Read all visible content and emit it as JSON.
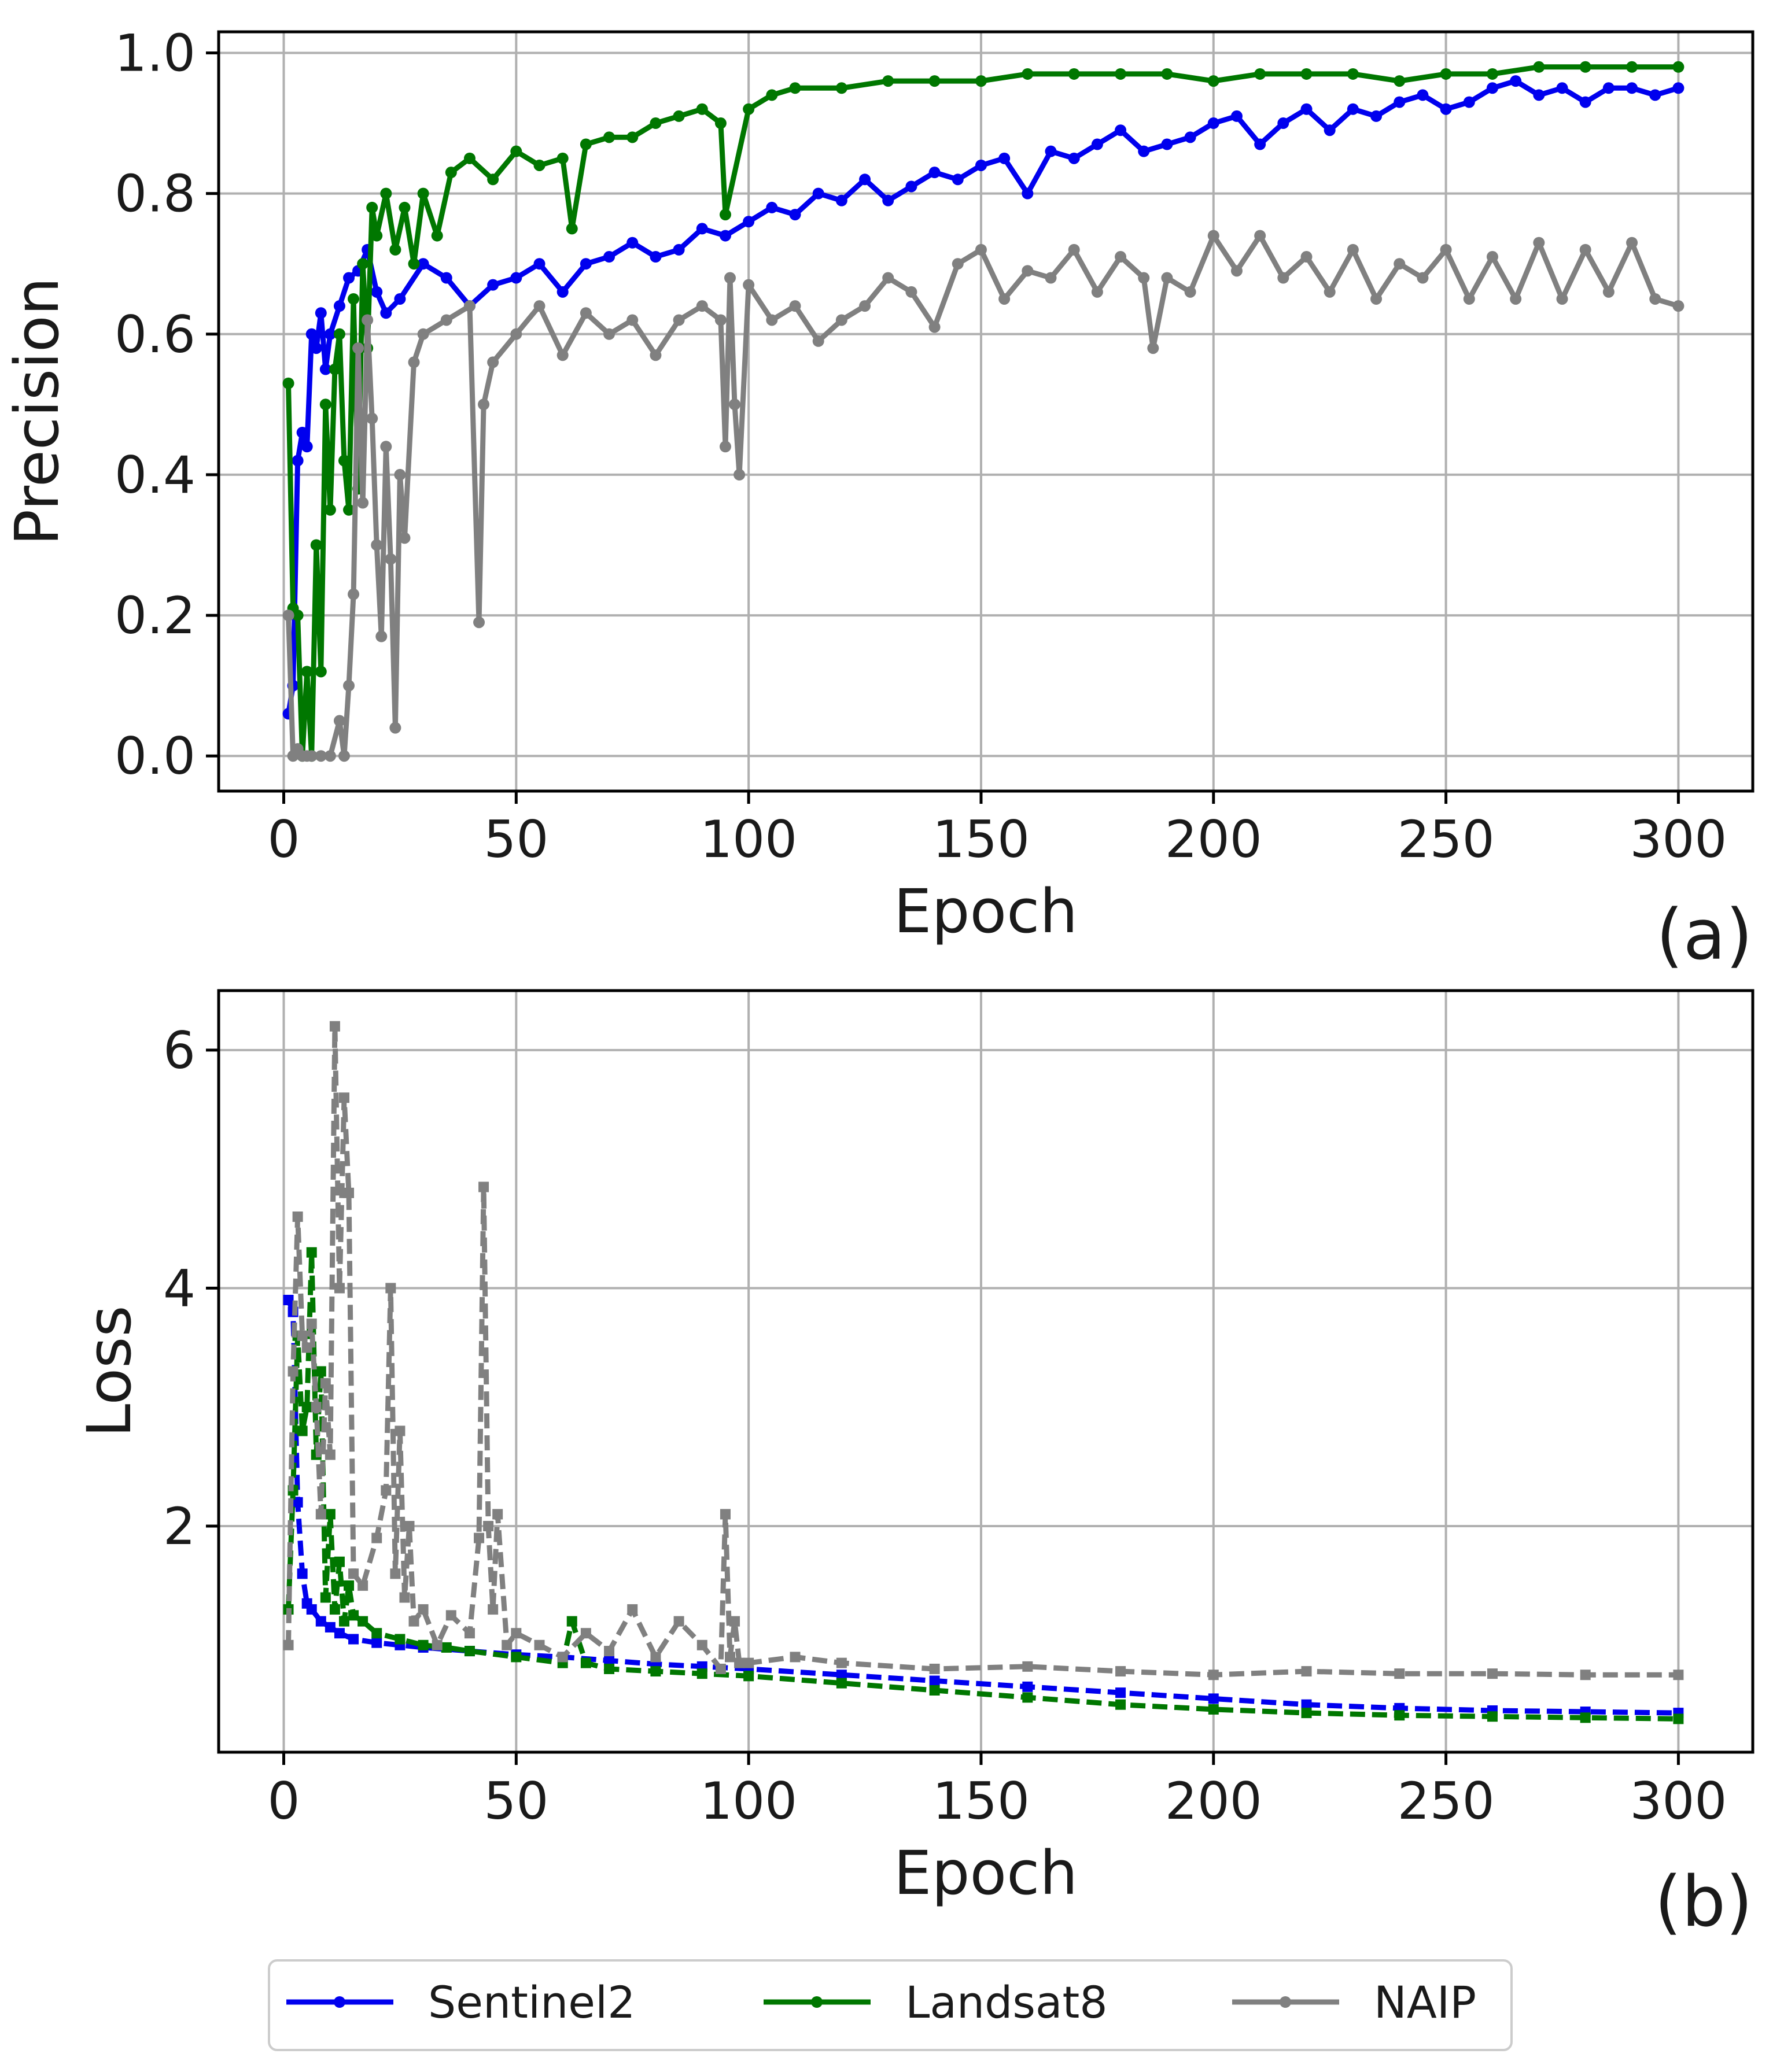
{
  "chart_data": [
    {
      "type": "line",
      "panel_label": "(a)",
      "xlabel": "Epoch",
      "ylabel": "Precision",
      "xlim": [
        -14,
        316
      ],
      "ylim": [
        -0.05,
        1.03
      ],
      "xticks": [
        0,
        50,
        100,
        150,
        200,
        250,
        300
      ],
      "xtick_labels": [
        "0",
        "50",
        "100",
        "150",
        "200",
        "250",
        "300"
      ],
      "yticks": [
        0.0,
        0.2,
        0.4,
        0.6,
        0.8,
        1.0
      ],
      "ytick_labels": [
        "0.0",
        "0.2",
        "0.4",
        "0.6",
        "0.8",
        "1.0"
      ],
      "grid": true,
      "series": [
        {
          "name": "Sentinel2",
          "color": "#0000ee",
          "style": "solid",
          "x": [
            1,
            2,
            3,
            4,
            5,
            6,
            7,
            8,
            9,
            10,
            12,
            14,
            16,
            18,
            20,
            22,
            25,
            30,
            35,
            40,
            45,
            50,
            55,
            60,
            65,
            70,
            75,
            80,
            85,
            90,
            95,
            100,
            105,
            110,
            115,
            120,
            125,
            130,
            135,
            140,
            145,
            150,
            155,
            160,
            165,
            170,
            175,
            180,
            185,
            190,
            195,
            200,
            205,
            210,
            215,
            220,
            225,
            230,
            235,
            240,
            245,
            250,
            255,
            260,
            265,
            270,
            275,
            280,
            285,
            290,
            295,
            300
          ],
          "values": [
            0.06,
            0.1,
            0.42,
            0.46,
            0.44,
            0.6,
            0.58,
            0.63,
            0.55,
            0.6,
            0.64,
            0.68,
            0.69,
            0.72,
            0.66,
            0.63,
            0.65,
            0.7,
            0.68,
            0.64,
            0.67,
            0.68,
            0.7,
            0.66,
            0.7,
            0.71,
            0.73,
            0.71,
            0.72,
            0.75,
            0.74,
            0.76,
            0.78,
            0.77,
            0.8,
            0.79,
            0.82,
            0.79,
            0.81,
            0.83,
            0.82,
            0.84,
            0.85,
            0.8,
            0.86,
            0.85,
            0.87,
            0.89,
            0.86,
            0.87,
            0.88,
            0.9,
            0.91,
            0.87,
            0.9,
            0.92,
            0.89,
            0.92,
            0.91,
            0.93,
            0.94,
            0.92,
            0.93,
            0.95,
            0.96,
            0.94,
            0.95,
            0.93,
            0.95,
            0.95,
            0.94,
            0.95
          ]
        },
        {
          "name": "Landsat8",
          "color": "#007700",
          "style": "solid",
          "x": [
            1,
            2,
            3,
            4,
            5,
            6,
            7,
            8,
            9,
            10,
            11,
            12,
            13,
            14,
            15,
            16,
            17,
            18,
            19,
            20,
            22,
            24,
            26,
            28,
            30,
            33,
            36,
            40,
            45,
            50,
            55,
            60,
            62,
            65,
            70,
            75,
            80,
            85,
            90,
            94,
            95,
            100,
            105,
            110,
            120,
            130,
            140,
            150,
            160,
            170,
            180,
            190,
            200,
            210,
            220,
            230,
            240,
            250,
            260,
            270,
            280,
            290,
            300
          ],
          "values": [
            0.53,
            0.21,
            0.2,
            0.0,
            0.12,
            0.0,
            0.3,
            0.12,
            0.5,
            0.35,
            0.55,
            0.6,
            0.42,
            0.35,
            0.65,
            0.38,
            0.7,
            0.58,
            0.78,
            0.74,
            0.8,
            0.72,
            0.78,
            0.7,
            0.8,
            0.74,
            0.83,
            0.85,
            0.82,
            0.86,
            0.84,
            0.85,
            0.75,
            0.87,
            0.88,
            0.88,
            0.9,
            0.91,
            0.92,
            0.9,
            0.77,
            0.92,
            0.94,
            0.95,
            0.95,
            0.96,
            0.96,
            0.96,
            0.97,
            0.97,
            0.97,
            0.97,
            0.96,
            0.97,
            0.97,
            0.97,
            0.96,
            0.97,
            0.97,
            0.98,
            0.98,
            0.98,
            0.98
          ]
        },
        {
          "name": "NAIP",
          "color": "#808080",
          "style": "solid",
          "x": [
            1,
            2,
            3,
            4,
            5,
            6,
            8,
            10,
            12,
            13,
            14,
            15,
            16,
            17,
            18,
            19,
            20,
            21,
            22,
            23,
            24,
            25,
            26,
            28,
            30,
            35,
            40,
            42,
            43,
            45,
            50,
            55,
            60,
            65,
            70,
            75,
            80,
            85,
            90,
            94,
            95,
            96,
            97,
            98,
            100,
            105,
            110,
            115,
            120,
            125,
            130,
            135,
            140,
            145,
            150,
            155,
            160,
            165,
            170,
            175,
            180,
            185,
            187,
            190,
            195,
            200,
            205,
            210,
            215,
            220,
            225,
            230,
            235,
            240,
            245,
            250,
            255,
            260,
            265,
            270,
            275,
            280,
            285,
            290,
            295,
            300
          ],
          "values": [
            0.2,
            0.0,
            0.01,
            0.0,
            0.0,
            0.0,
            0.0,
            0.0,
            0.05,
            0.0,
            0.1,
            0.23,
            0.58,
            0.36,
            0.62,
            0.48,
            0.3,
            0.17,
            0.44,
            0.28,
            0.04,
            0.4,
            0.31,
            0.56,
            0.6,
            0.62,
            0.64,
            0.19,
            0.5,
            0.56,
            0.6,
            0.64,
            0.57,
            0.63,
            0.6,
            0.62,
            0.57,
            0.62,
            0.64,
            0.62,
            0.44,
            0.68,
            0.5,
            0.4,
            0.67,
            0.62,
            0.64,
            0.59,
            0.62,
            0.64,
            0.68,
            0.66,
            0.61,
            0.7,
            0.72,
            0.65,
            0.69,
            0.68,
            0.72,
            0.66,
            0.71,
            0.68,
            0.58,
            0.68,
            0.66,
            0.74,
            0.69,
            0.74,
            0.68,
            0.71,
            0.66,
            0.72,
            0.65,
            0.7,
            0.68,
            0.72,
            0.65,
            0.71,
            0.65,
            0.73,
            0.65,
            0.72,
            0.66,
            0.73,
            0.65,
            0.64
          ]
        }
      ]
    },
    {
      "type": "line",
      "panel_label": "(b)",
      "xlabel": "Epoch",
      "ylabel": "Loss",
      "xlim": [
        -14,
        316
      ],
      "ylim": [
        0.1,
        6.5
      ],
      "xticks": [
        0,
        50,
        100,
        150,
        200,
        250,
        300
      ],
      "xtick_labels": [
        "0",
        "50",
        "100",
        "150",
        "200",
        "250",
        "300"
      ],
      "yticks": [
        2,
        4,
        6
      ],
      "ytick_labels": [
        "2",
        "4",
        "6"
      ],
      "grid": true,
      "series": [
        {
          "name": "Sentinel2",
          "color": "#0000ee",
          "style": "dashed",
          "x": [
            1,
            2,
            3,
            4,
            5,
            6,
            8,
            10,
            12,
            15,
            20,
            25,
            30,
            40,
            50,
            60,
            70,
            80,
            90,
            100,
            120,
            140,
            160,
            180,
            200,
            220,
            240,
            260,
            280,
            300
          ],
          "values": [
            3.9,
            3.8,
            2.2,
            1.6,
            1.35,
            1.3,
            1.2,
            1.15,
            1.1,
            1.05,
            1.02,
            1.0,
            0.98,
            0.95,
            0.92,
            0.9,
            0.87,
            0.84,
            0.82,
            0.8,
            0.75,
            0.7,
            0.65,
            0.6,
            0.55,
            0.5,
            0.47,
            0.45,
            0.44,
            0.43
          ]
        },
        {
          "name": "Landsat8",
          "color": "#007700",
          "style": "dashed",
          "x": [
            1,
            2,
            3,
            4,
            5,
            6,
            7,
            8,
            9,
            10,
            11,
            12,
            13,
            14,
            15,
            17,
            20,
            25,
            30,
            35,
            40,
            50,
            60,
            62,
            65,
            70,
            80,
            90,
            100,
            120,
            140,
            160,
            180,
            200,
            220,
            240,
            260,
            280,
            300
          ],
          "values": [
            1.3,
            2.3,
            3.6,
            2.8,
            3.0,
            4.3,
            2.6,
            3.3,
            1.4,
            2.1,
            1.3,
            1.7,
            1.2,
            1.5,
            1.25,
            1.2,
            1.1,
            1.05,
            1.0,
            0.98,
            0.95,
            0.9,
            0.85,
            1.2,
            0.85,
            0.8,
            0.78,
            0.76,
            0.74,
            0.68,
            0.62,
            0.56,
            0.5,
            0.46,
            0.43,
            0.41,
            0.4,
            0.39,
            0.38
          ]
        },
        {
          "name": "NAIP",
          "color": "#808080",
          "style": "dashed",
          "x": [
            1,
            2,
            3,
            4,
            5,
            6,
            7,
            8,
            9,
            10,
            11,
            12,
            13,
            14,
            15,
            17,
            20,
            22,
            23,
            24,
            25,
            26,
            27,
            28,
            30,
            33,
            36,
            40,
            42,
            43,
            44,
            45,
            46,
            48,
            50,
            55,
            60,
            65,
            70,
            75,
            80,
            85,
            90,
            94,
            95,
            96,
            97,
            98,
            100,
            110,
            120,
            140,
            160,
            180,
            200,
            220,
            240,
            260,
            280,
            300
          ],
          "values": [
            1.0,
            3.3,
            4.6,
            3.6,
            3.5,
            3.7,
            3.0,
            2.1,
            3.2,
            2.6,
            6.2,
            4.0,
            5.6,
            4.8,
            1.6,
            1.5,
            1.9,
            2.3,
            4.0,
            1.6,
            2.8,
            1.4,
            2.0,
            1.2,
            1.3,
            1.0,
            1.25,
            1.1,
            1.9,
            4.85,
            2.0,
            1.3,
            2.1,
            1.0,
            1.1,
            1.0,
            0.9,
            1.1,
            0.95,
            1.3,
            0.9,
            1.2,
            1.0,
            0.8,
            2.1,
            0.9,
            1.2,
            0.85,
            0.85,
            0.9,
            0.85,
            0.8,
            0.82,
            0.78,
            0.75,
            0.78,
            0.76,
            0.76,
            0.75,
            0.75
          ]
        }
      ]
    }
  ],
  "legend": {
    "placement": "bottom",
    "entries": [
      "Sentinel2",
      "Landsat8",
      "NAIP"
    ]
  }
}
